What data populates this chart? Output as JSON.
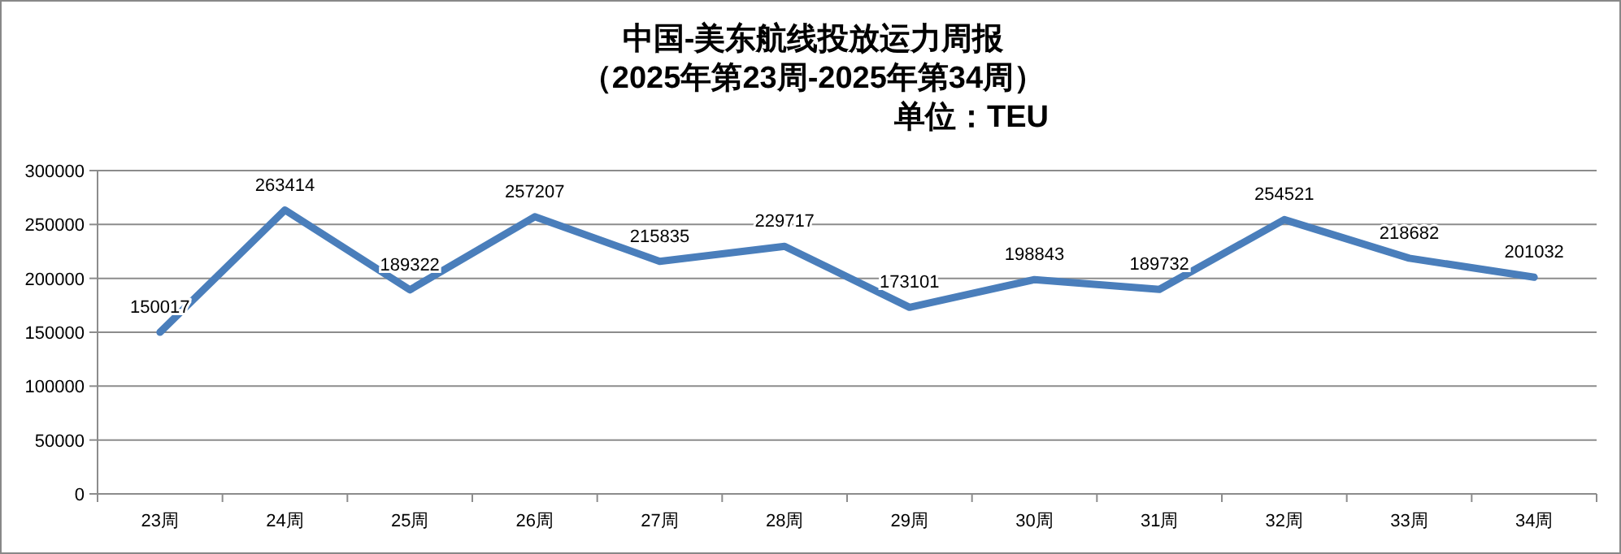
{
  "chart_data": {
    "type": "line",
    "title": "中国-美东航线投放运力周报",
    "subtitle": "（2025年第23周-2025年第34周）",
    "annotations": [
      "单位：TEU"
    ],
    "categories": [
      "23周",
      "24周",
      "25周",
      "26周",
      "27周",
      "28周",
      "29周",
      "30周",
      "31周",
      "32周",
      "33周",
      "34周"
    ],
    "series": [
      {
        "color": "#4a7ebb",
        "values": [
          150017,
          263414,
          189322,
          257207,
          215835,
          229717,
          173101,
          198843,
          189732,
          254521,
          218682,
          201032
        ]
      }
    ],
    "ylim": [
      0,
      300000
    ],
    "yticks": [
      0,
      50000,
      100000,
      150000,
      200000,
      250000,
      300000
    ],
    "grid": "y",
    "data_labels": true,
    "marker": "none",
    "line_style": "solid"
  }
}
